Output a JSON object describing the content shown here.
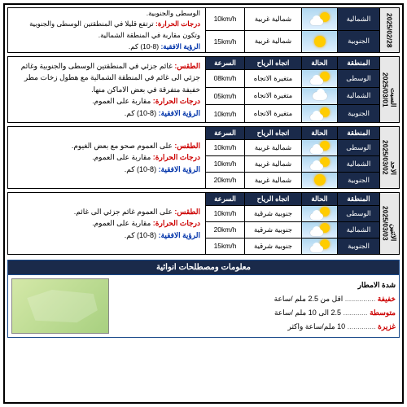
{
  "headers": {
    "region": "المنطقة",
    "state": "الحالة",
    "wind": "اتجاه الرياح",
    "speed": "السرعة"
  },
  "regions": {
    "central": "الوسطى",
    "north": "الشمالية",
    "south": "الجنوبية"
  },
  "partial_top": {
    "date": "2025/02/28",
    "rows": [
      {
        "region": "north_tail",
        "region_label": "الشمالية",
        "weather": "partly",
        "wind": "شمالية غربية",
        "speed": "10km/h"
      },
      {
        "region": "south",
        "region_label": "الجنوبية",
        "weather": "sunny",
        "wind": "شمالية غربية",
        "speed": "15km/h"
      }
    ],
    "desc": {
      "l1a": "الوسطى والجنوبية.",
      "l2a": "درجات الحرارة:",
      "l2b": " ترتفع قليلا في المنطقتين الوسطى والجنوبية وتكون مقاربة في المنطقة الشمالية.",
      "l3a": "الرؤية الافقية:",
      "l3b": " (8-10) كم."
    }
  },
  "days": [
    {
      "day_label": "السبت",
      "date": "2025/03/01",
      "rows": [
        {
          "region": "الوسطى",
          "weather": "partly",
          "wind": "متغيرة الاتجاه",
          "speed": "08km/h"
        },
        {
          "region": "الشمالية",
          "weather": "cloudy",
          "wind": "متغيرة الاتجاه",
          "speed": "05km/h"
        },
        {
          "region": "الجنوبية",
          "weather": "partly",
          "wind": "متغيرة الاتجاه",
          "speed": "10km/h"
        }
      ],
      "desc": {
        "l1a": "الطقس:",
        "l1b": " غائم جزئي في المنطقتين الوسطى والجنوبية وغائم جزئي الى غائم في المنطقة الشمالية مع هطول زخات مطر خفيفة متفرقة في بعض الاماكن منها.",
        "l2a": "درجات الحرارة:",
        "l2b": " مقاربة على العموم.",
        "l3a": "الرؤية الافقية:",
        "l3b": " (8-10) كم."
      }
    },
    {
      "day_label": "الاحد",
      "date": "2025/03/02",
      "rows": [
        {
          "region": "الوسطى",
          "weather": "partly",
          "wind": "شمالية غربية",
          "speed": "10km/h"
        },
        {
          "region": "الشمالية",
          "weather": "partly",
          "wind": "شمالية غربية",
          "speed": "10km/h"
        },
        {
          "region": "الجنوبية",
          "weather": "sunny",
          "wind": "شمالية غربية",
          "speed": "20km/h"
        }
      ],
      "desc": {
        "l1a": "الطقس:",
        "l1b": " على العموم صحو مع بعض الغيوم.",
        "l2a": "درجات الحرارة:",
        "l2b": " مقاربة على العموم.",
        "l3a": "الرؤية الافقية:",
        "l3b": " (8-10) كم."
      }
    },
    {
      "day_label": "الاثنين",
      "date": "2025/03/03",
      "rows": [
        {
          "region": "الوسطى",
          "weather": "partly",
          "wind": "جنوبية شرقية",
          "speed": "10km/h"
        },
        {
          "region": "الشمالية",
          "weather": "partly",
          "wind": "جنوبية شرقية",
          "speed": "20km/h"
        },
        {
          "region": "الجنوبية",
          "weather": "partly",
          "wind": "جنوبية شرقية",
          "speed": "15km/h"
        }
      ],
      "desc": {
        "l1a": "الطقس:",
        "l1b": " على العموم غائم جزئي الى غائم.",
        "l2a": "درجات الحرارة:",
        "l2b": " مقاربة على العموم.",
        "l3a": "الرؤية الافقية:",
        "l3b": " (8-10) كم."
      }
    }
  ],
  "info": {
    "title": "معلومات ومصطلحات انوائية",
    "rain_heading": "شدة الامطار",
    "light_lbl": "خفيفة",
    "light_txt": " اقل من 2.5 ملم /ساعة",
    "mod_lbl": "متوسطة",
    "mod_txt": " 2.5 الى 10 ملم /ساعة",
    "heavy_lbl": "غزيرة",
    "heavy_txt": " 10 ملم/ساعة واكثر"
  }
}
